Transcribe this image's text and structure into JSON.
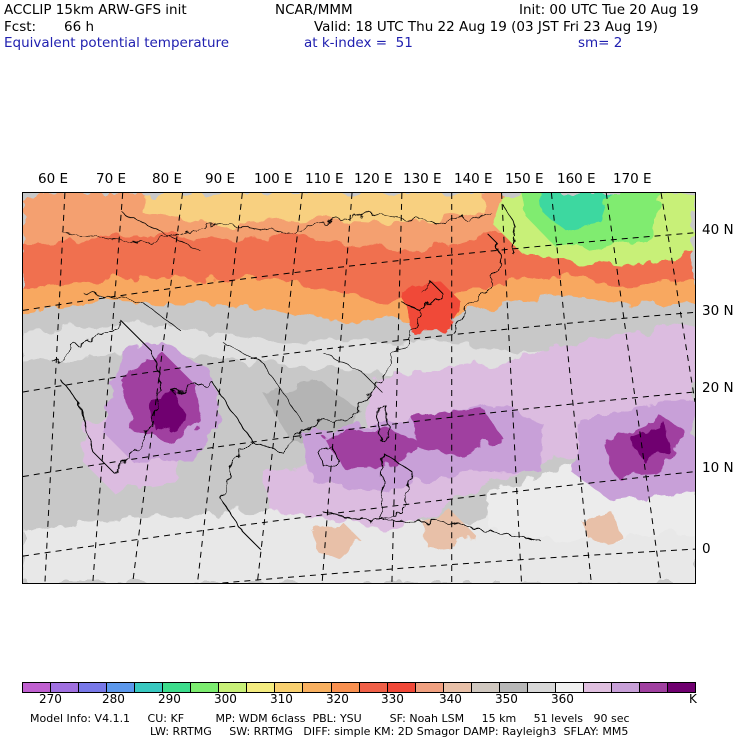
{
  "header": {
    "model": "ACCLIP 15km ARW-GFS init",
    "org": "NCAR/MMM",
    "init": "Init: 00 UTC Tue 20 Aug 19",
    "fcst_label": "Fcst:",
    "fcst_value": "66 h",
    "valid": "Valid: 18 UTC Thu 22 Aug 19 (03 JST Fri 23 Aug 19)",
    "field": "Equivalent potential temperature",
    "level": "at k-index =  51",
    "smooth": "sm= 2"
  },
  "map": {
    "lon_labels": [
      "60 E",
      "70 E",
      "80 E",
      "90 E",
      "100 E",
      "110 E",
      "120 E",
      "130 E",
      "140 E",
      "150 E",
      "160 E",
      "170 E"
    ],
    "lat_labels": [
      "40 N",
      "30 N",
      "20 N",
      "10 N",
      "0"
    ]
  },
  "colorbar": {
    "colors": [
      "#c060d0",
      "#a070e0",
      "#7878e8",
      "#5c98ec",
      "#38c8c0",
      "#3cdc8c",
      "#7cec70",
      "#c8f078",
      "#f4ec80",
      "#f8d070",
      "#f8b060",
      "#f89050",
      "#f06048",
      "#f04838",
      "#f0a080",
      "#e8c0a8",
      "#d0c8c0",
      "#b8b8b8",
      "#d8d8d8",
      "#f0f0f0",
      "#e0c0e0",
      "#c8a0d8",
      "#a040a0",
      "#700070"
    ],
    "labels": [
      "270",
      "280",
      "290",
      "300",
      "310",
      "320",
      "330",
      "340",
      "350",
      "360"
    ],
    "unit": "K"
  },
  "model_info": {
    "line1": "Model Info: V4.1.1     CU: KF         MP: WDM 6class  PBL: YSU        SF: Noah LSM     15 km     51 levels   90 sec",
    "line2": "LW: RRTMG     SW: RRTMG   DIFF: simple KM: 2D Smagor DAMP: Rayleigh3  SFLAY: MM5"
  }
}
